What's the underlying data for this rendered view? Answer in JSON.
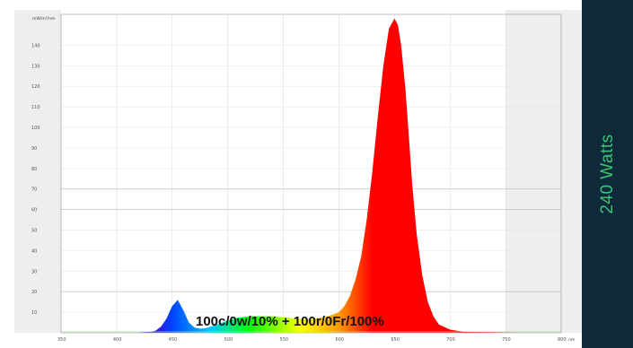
{
  "chart_data": {
    "type": "area",
    "title": "",
    "ylabel": "mW/m²/nm",
    "xlabel": "nm",
    "xlim": [
      350,
      800
    ],
    "ylim": [
      0,
      155
    ],
    "x_tick_labels": [
      "350",
      "400",
      "450",
      "500",
      "550",
      "600",
      "650",
      "700",
      "750",
      "800"
    ],
    "y_tick_labels": [
      "10",
      "20",
      "30",
      "40",
      "50",
      "60",
      "70",
      "80",
      "90",
      "100",
      "110",
      "120",
      "130",
      "140"
    ],
    "grid": true,
    "series": [
      {
        "x": [
          380,
          420,
          430,
          435,
          440,
          445,
          450,
          455,
          460,
          465,
          470,
          475,
          480,
          490,
          500,
          510,
          520,
          530,
          540,
          550,
          560,
          570,
          580,
          590,
          600,
          605,
          610,
          615,
          620,
          625,
          630,
          635,
          640,
          645,
          650,
          653,
          656,
          660,
          663,
          666,
          670,
          675,
          680,
          685,
          690,
          700,
          710,
          720,
          760
        ],
        "values": [
          0,
          0,
          0.3,
          1,
          3,
          7,
          13,
          16,
          11,
          5,
          2.5,
          2,
          2.2,
          4,
          6,
          7.5,
          8,
          8,
          8,
          7.5,
          7,
          6.5,
          7,
          8,
          10,
          13,
          18,
          26,
          37,
          55,
          78,
          105,
          130,
          148,
          153,
          150,
          140,
          118,
          95,
          72,
          48,
          28,
          15,
          8,
          4,
          1.5,
          0.7,
          0.3,
          0
        ]
      }
    ],
    "fill_colors": {
      "violet": "#4400cc",
      "blue": "#0044ff",
      "cyan": "#00c8ff",
      "green": "#00ff00",
      "yellow": "#ffff00",
      "orange": "#ff9900",
      "red": "#ff0000"
    }
  },
  "overlay_label": "100c/0w/10% + 100r/0Fr/100%",
  "side_panel": {
    "label": "240 Watts",
    "background": "#0e2a3a",
    "text_color": "#3cc172"
  }
}
